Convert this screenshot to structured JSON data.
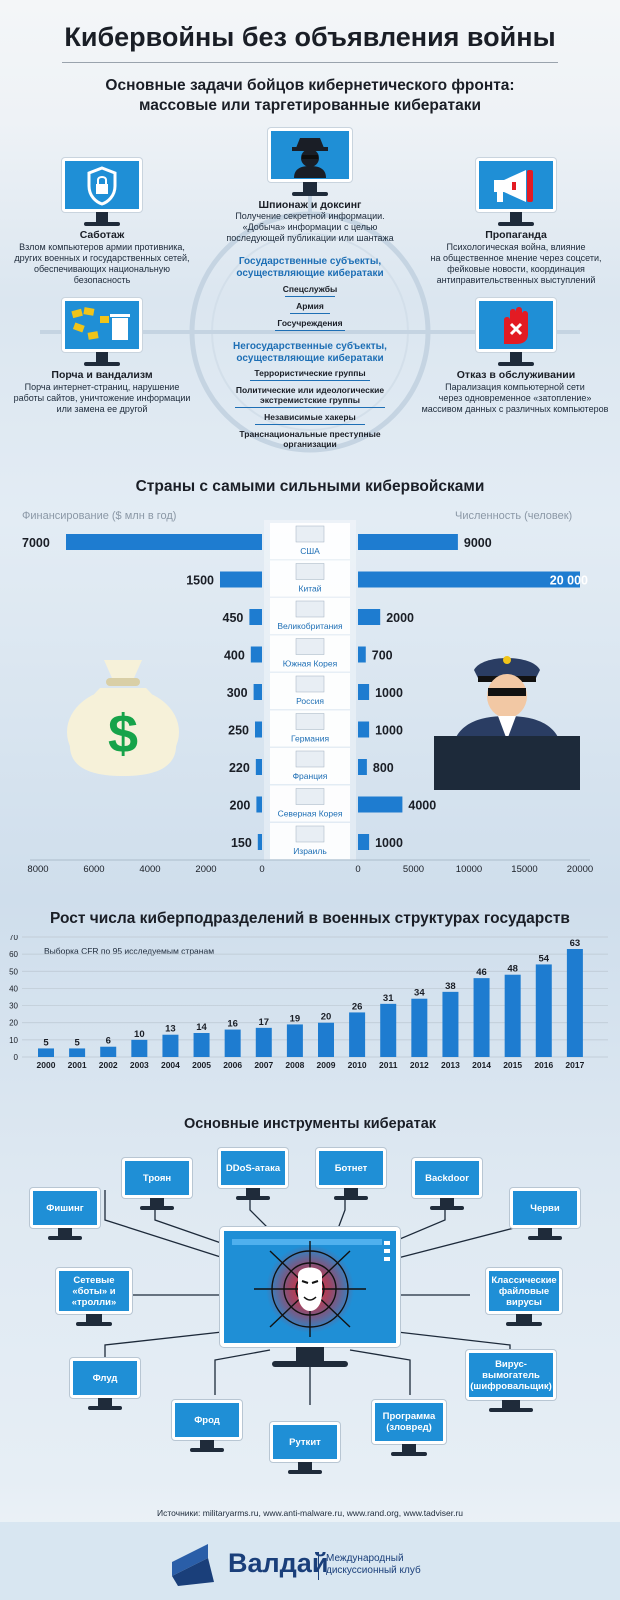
{
  "header": {
    "title": "Кибервойны без объявления войны",
    "subtitle_line1": "Основные задачи бойцов кибернетического фронта:",
    "subtitle_line2": "массовые или таргетированные кибератаки"
  },
  "tasks": {
    "sabotage": {
      "title": "Саботаж",
      "text": [
        "Взлом компьютеров армии противника,",
        "других военных и государственных сетей,",
        "обеспечивающих национальную",
        "безопасность"
      ]
    },
    "espionage": {
      "title": "Шпионаж и доксинг",
      "text": [
        "Получение секретной информации.",
        "«Добыча» информации с целью",
        "последующей публикации или шантажа"
      ]
    },
    "propaganda": {
      "title": "Пропаганда",
      "text": [
        "Психологическая война, влияние",
        "на общественное мнение через соцсети,",
        "фейковые новости, координация",
        "антиправительственных выступлений"
      ]
    },
    "vandalism": {
      "title": "Порча и вандализм",
      "text": [
        "Порча интернет-страниц, нарушение",
        "работы сайтов, уничтожение информации",
        "или замена ее другой"
      ]
    },
    "dos": {
      "title": "Отказ в обслуживании",
      "text": [
        "Парализация компьютерной сети",
        "через одновременное «затопление»",
        "массивом данных с различных компьютеров"
      ]
    }
  },
  "entities": {
    "state_title": [
      "Государственные субъекты,",
      "осуществляющие кибератаки"
    ],
    "state_items": [
      "Спецслужбы",
      "Армия",
      "Госучреждения"
    ],
    "nonstate_title": [
      "Негосударственные субъекты,",
      "осуществляющие кибератаки"
    ],
    "nonstate_items": [
      "Террористические группы",
      "Политические или идеологические",
      "экстремистские группы",
      "Независимые хакеры",
      "Транснациональные преступные",
      "организации"
    ]
  },
  "countries_section": {
    "title": "Страны с самыми сильными кибервойсками",
    "left_label": "Финансирование ($ млн в год)",
    "right_label": "Численность (человек)"
  },
  "growth_section": {
    "title": "Рост числа киберподразделений в военных структурах государств",
    "note": "Выборка CFR по 95 исследуемым странам"
  },
  "tools_section": {
    "title": "Основные инструменты кибератак",
    "tools": {
      "trojan": "Троян",
      "ddos": "DDoS-атака",
      "botnet": "Ботнет",
      "backdoor": "Backdoor",
      "phishing": "Фишинг",
      "worms": "Черви",
      "bots": "Сетевые «боты» и «тролли»",
      "viruses": "Классические файловые вирусы",
      "flood": "Флуд",
      "ransomware": "Вирус-вымогатель (шифровальщик)",
      "fraud": "Фрод",
      "rootkit": "Руткит",
      "malware": "Программа (зловред)"
    }
  },
  "sources": "Источники: militaryarms.ru, www.anti-malware.ru, www.rand.org, www.tadviser.ru",
  "footer": {
    "brand": "Валдай",
    "club_line1": "Международный",
    "club_line2": "дискуссионный клуб"
  },
  "colors": {
    "accent": "#1e7cd0",
    "dark": "#1a1e26",
    "link": "#1e6fb5"
  },
  "chart_data": [
    {
      "type": "bar",
      "title": "Страны с самыми сильными кибервойсками",
      "categories": [
        "США",
        "Китай",
        "Великобритания",
        "Южная Корея",
        "Россия",
        "Германия",
        "Франция",
        "Северная Корея",
        "Израиль"
      ],
      "series": [
        {
          "name": "Финансирование ($ млн в год)",
          "values": [
            7000,
            1500,
            450,
            400,
            300,
            250,
            220,
            200,
            150
          ]
        },
        {
          "name": "Численность (человек)",
          "values": [
            9000,
            20000,
            2000,
            700,
            1000,
            1000,
            800,
            4000,
            1000
          ]
        }
      ],
      "left_axis": {
        "ticks": [
          8000,
          6000,
          4000,
          2000,
          0
        ],
        "range": [
          0,
          8000
        ]
      },
      "right_axis": {
        "ticks": [
          0,
          5000,
          10000,
          15000,
          20000
        ],
        "range": [
          0,
          20000
        ]
      }
    },
    {
      "type": "bar",
      "title": "Рост числа киберподразделений в военных структурах государств",
      "categories": [
        "2000",
        "2001",
        "2002",
        "2003",
        "2004",
        "2005",
        "2006",
        "2007",
        "2008",
        "2009",
        "2010",
        "2011",
        "2012",
        "2013",
        "2014",
        "2015",
        "2016",
        "2017"
      ],
      "values": [
        5,
        5,
        6,
        10,
        13,
        14,
        16,
        17,
        19,
        20,
        26,
        31,
        34,
        38,
        46,
        48,
        54,
        63
      ],
      "ylim": [
        0,
        70
      ],
      "yticks": [
        0,
        10,
        20,
        30,
        40,
        50,
        60,
        70
      ],
      "grid": true
    }
  ]
}
